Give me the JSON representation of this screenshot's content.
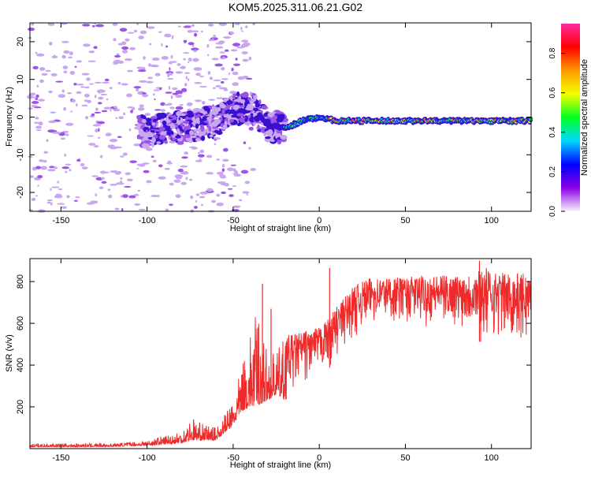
{
  "title": "KOM5.2025.311.06.21.G02",
  "colors": {
    "snr_line": "#ee2a2a",
    "spectro_light": "#c9a6f0",
    "spectro_mid": "#9a55e8",
    "spectro_dark": "#3a10d0"
  },
  "chart_data": [
    {
      "type": "heatmap",
      "name": "spectrogram",
      "xlabel": "Height of straight line (km)",
      "ylabel": "Frequency (Hz)",
      "xlim": [
        -168,
        123
      ],
      "ylim": [
        -25,
        25
      ],
      "xticks": [
        -150,
        -100,
        -50,
        0,
        50,
        100
      ],
      "xtick_labels": [
        "-150",
        "-100",
        "-50",
        "0",
        "50",
        "100"
      ],
      "yticks": [
        20,
        10,
        0,
        -10,
        -20
      ],
      "ytick_labels": [
        "20",
        "10",
        "0",
        "-10",
        "-20"
      ],
      "ridge": {
        "x": [
          -100,
          -90,
          -80,
          -70,
          -60,
          -50,
          -40,
          -30,
          -20,
          -10,
          0,
          10,
          20,
          40,
          60,
          80,
          100,
          123
        ],
        "y": [
          -4,
          -3,
          -3,
          -2,
          -1,
          2,
          3,
          -2,
          -3,
          -1,
          0,
          -1,
          -1,
          -1,
          -1,
          -1,
          -1,
          -1
        ]
      },
      "colorbar": {
        "label": "Normalized spectral amplitude",
        "range": [
          0.0,
          0.95
        ],
        "ticks": [
          0.0,
          0.2,
          0.4,
          0.6,
          0.8
        ],
        "tick_labels": [
          "0.0",
          "0.2",
          "0.4",
          "0.6",
          "0.8"
        ],
        "colors": [
          "#f6f2fb",
          "#8c00e6",
          "#0000ff",
          "#00d8ff",
          "#00ff20",
          "#f2ff00",
          "#ff9a00",
          "#ff0000",
          "#ff2aa0"
        ]
      }
    },
    {
      "type": "line",
      "name": "snr",
      "xlabel": "Height of straight line (km)",
      "ylabel": "SNR (v/v)",
      "xlim": [
        -168,
        123
      ],
      "ylim": [
        0,
        910
      ],
      "xticks": [
        -150,
        -100,
        -50,
        0,
        50,
        100
      ],
      "xtick_labels": [
        "-150",
        "-100",
        "-50",
        "0",
        "50",
        "100"
      ],
      "yticks": [
        200,
        400,
        600,
        800
      ],
      "ytick_labels": [
        "200",
        "400",
        "600",
        "800"
      ],
      "envelope": {
        "x": [
          -168,
          -120,
          -100,
          -80,
          -75,
          -60,
          -50,
          -45,
          -40,
          -35,
          -30,
          -25,
          -20,
          -10,
          0,
          5,
          10,
          20,
          30,
          40,
          50,
          60,
          70,
          80,
          90,
          95,
          100,
          110,
          123
        ],
        "base": [
          8,
          10,
          15,
          25,
          40,
          40,
          110,
          180,
          200,
          210,
          230,
          260,
          230,
          300,
          350,
          380,
          420,
          530,
          590,
          600,
          590,
          580,
          590,
          580,
          560,
          480,
          520,
          500,
          480
        ],
        "upper": [
          25,
          25,
          40,
          90,
          140,
          100,
          230,
          400,
          560,
          690,
          450,
          460,
          540,
          560,
          580,
          620,
          680,
          780,
          820,
          820,
          820,
          830,
          830,
          830,
          840,
          880,
          850,
          840,
          840
        ]
      },
      "spikes": [
        {
          "x": -73,
          "y": 140
        },
        {
          "x": -33,
          "y": 790
        },
        {
          "x": -28,
          "y": 670
        },
        {
          "x": 6,
          "y": 865
        },
        {
          "x": 93,
          "y": 900
        }
      ]
    }
  ]
}
